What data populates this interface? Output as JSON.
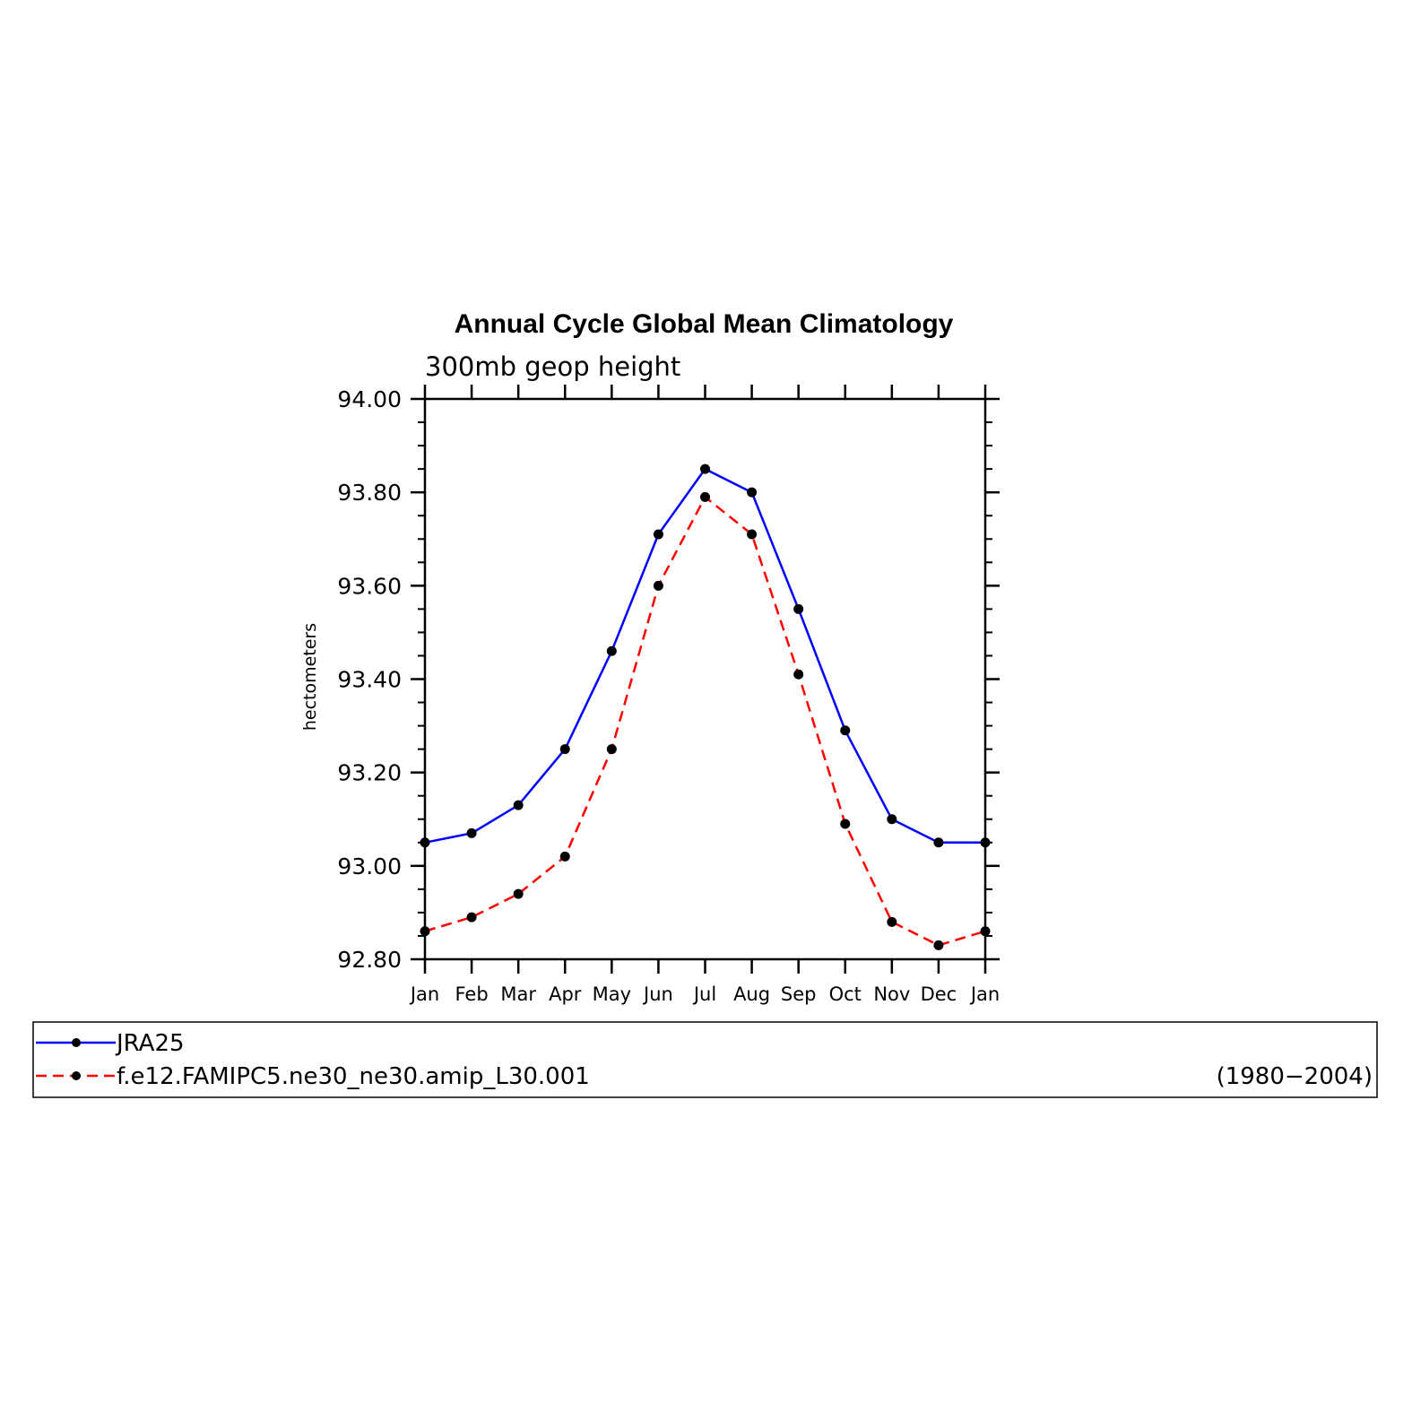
{
  "chart_data": {
    "type": "line",
    "title": "Annual Cycle Global Mean Climatology",
    "subtitle": "300mb geop height",
    "xlabel": "",
    "ylabel": "hectometers",
    "ylim": [
      92.8,
      94.0
    ],
    "yticks": [
      "92.80",
      "93.00",
      "93.20",
      "93.40",
      "93.60",
      "93.80",
      "94.00"
    ],
    "categories": [
      "Jan",
      "Feb",
      "Mar",
      "Apr",
      "May",
      "Jun",
      "Jul",
      "Aug",
      "Sep",
      "Oct",
      "Nov",
      "Dec",
      "Jan"
    ],
    "grid": false,
    "legend_position": "bottom",
    "series": [
      {
        "name": "JRA25",
        "color": "#0000ff",
        "dashed": false,
        "values": [
          93.05,
          93.07,
          93.13,
          93.25,
          93.46,
          93.71,
          93.85,
          93.8,
          93.55,
          93.29,
          93.1,
          93.05,
          93.05
        ]
      },
      {
        "name": "f.e12.FAMIPC5.ne30_ne30.amip_L30.001",
        "color": "#ff0000",
        "dashed": true,
        "values": [
          92.86,
          92.89,
          92.94,
          93.02,
          93.25,
          93.6,
          93.79,
          93.71,
          93.41,
          93.09,
          92.88,
          92.83,
          92.86
        ]
      }
    ],
    "legend_note": "(1980−2004)",
    "marker_color": "#000000"
  }
}
